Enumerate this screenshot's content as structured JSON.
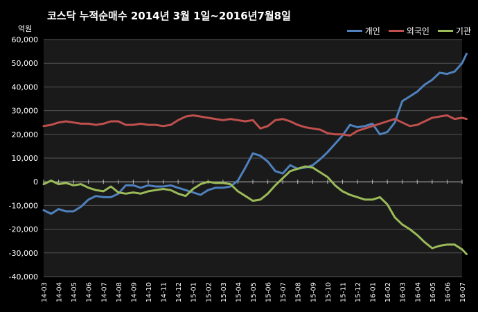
{
  "title": "코스닥  누적순매수 2014년 3월 1일~2016년7월8일",
  "chart_data": {
    "type": "line",
    "ylabel": "억원",
    "ylim": [
      -40000,
      60000
    ],
    "yticks": [
      -40000,
      -30000,
      -20000,
      -10000,
      0,
      10000,
      20000,
      30000,
      40000,
      50000,
      60000
    ],
    "ytick_labels": [
      "-40,000",
      "-30,000",
      "-20,000",
      "-10,000",
      "0",
      "10,000",
      "20,000",
      "30,000",
      "40,000",
      "50,000",
      "60,000"
    ],
    "categories": [
      "14-03",
      "14-04",
      "14-05",
      "14-06",
      "14-07",
      "14-08",
      "14-09",
      "14-10",
      "14-11",
      "14-12",
      "15-01",
      "15-02",
      "15-03",
      "15-04",
      "15-05",
      "15-06",
      "15-07",
      "15-08",
      "15-09",
      "15-10",
      "15-11",
      "15-12",
      "16-01",
      "16-02",
      "16-03",
      "16-04",
      "16-05",
      "16-06",
      "16-07"
    ],
    "grid": true,
    "legend": "top-right",
    "series": [
      {
        "name": "개인",
        "color": "#4f81bd",
        "x": [
          "14-03",
          "14-03.5",
          "14-04",
          "14-04.5",
          "14-05",
          "14-05.5",
          "14-06",
          "14-06.5",
          "14-07",
          "14-07.5",
          "14-08",
          "14-08.5",
          "14-09",
          "14-09.5",
          "14-10",
          "14-10.5",
          "14-11",
          "14-11.5",
          "14-12",
          "14-12.5",
          "15-01",
          "15-01.5",
          "15-02",
          "15-02.5",
          "15-03",
          "15-03.5",
          "15-04",
          "15-04.5",
          "15-05",
          "15-05.5",
          "15-06",
          "15-06.5",
          "15-07",
          "15-07.5",
          "15-08",
          "15-08.5",
          "15-09",
          "15-09.5",
          "15-10",
          "15-10.5",
          "15-11",
          "15-11.5",
          "15-12",
          "15-12.5",
          "16-01",
          "16-01.5",
          "16-02",
          "16-02.5",
          "16-03",
          "16-03.5",
          "16-04",
          "16-04.5",
          "16-05",
          "16-05.5",
          "16-06",
          "16-06.5",
          "16-07",
          "16-07.3"
        ],
        "values": [
          -12000,
          -13500,
          -11500,
          -12500,
          -12500,
          -10500,
          -7500,
          -6000,
          -6500,
          -6500,
          -5000,
          -1500,
          -1500,
          -2500,
          -1500,
          -2000,
          -2000,
          -1500,
          -2500,
          -3500,
          -4500,
          -5500,
          -3500,
          -2500,
          -2500,
          -2000,
          500,
          6000,
          12000,
          11000,
          8500,
          4500,
          3500,
          7000,
          5500,
          6000,
          7000,
          9500,
          12500,
          16000,
          19500,
          24000,
          23000,
          23500,
          24500,
          20000,
          21000,
          25000,
          34000,
          36000,
          38000,
          41000,
          43000,
          46000,
          45500,
          46500,
          50000,
          54000
        ]
      },
      {
        "name": "외국인",
        "color": "#c0504d",
        "x": [
          "14-03",
          "14-03.5",
          "14-04",
          "14-04.5",
          "14-05",
          "14-05.5",
          "14-06",
          "14-06.5",
          "14-07",
          "14-07.5",
          "14-08",
          "14-08.5",
          "14-09",
          "14-09.5",
          "14-10",
          "14-10.5",
          "14-11",
          "14-11.5",
          "14-12",
          "14-12.5",
          "15-01",
          "15-01.5",
          "15-02",
          "15-02.5",
          "15-03",
          "15-03.5",
          "15-04",
          "15-04.5",
          "15-05",
          "15-05.5",
          "15-06",
          "15-06.5",
          "15-07",
          "15-07.5",
          "15-08",
          "15-08.5",
          "15-09",
          "15-09.5",
          "15-10",
          "15-10.5",
          "15-11",
          "15-11.5",
          "15-12",
          "15-12.5",
          "16-01",
          "16-01.5",
          "16-02",
          "16-02.5",
          "16-03",
          "16-03.5",
          "16-04",
          "16-04.5",
          "16-05",
          "16-05.5",
          "16-06",
          "16-06.5",
          "16-07",
          "16-07.3"
        ],
        "values": [
          23500,
          24000,
          25000,
          25500,
          25000,
          24500,
          24500,
          24000,
          24500,
          25500,
          25500,
          24000,
          24000,
          24500,
          24000,
          24000,
          23500,
          24000,
          26000,
          27500,
          28000,
          27500,
          27000,
          26500,
          26000,
          26500,
          26000,
          25500,
          26000,
          22500,
          23500,
          26000,
          26500,
          25500,
          24000,
          23000,
          22500,
          22000,
          20500,
          20000,
          20000,
          19500,
          21500,
          22500,
          23500,
          24500,
          25500,
          26500,
          25000,
          23500,
          24000,
          25500,
          27000,
          27500,
          28000,
          26500,
          27000,
          26500
        ]
      },
      {
        "name": "기관",
        "color": "#9bbb59",
        "x": [
          "14-03",
          "14-03.5",
          "14-04",
          "14-04.5",
          "14-05",
          "14-05.5",
          "14-06",
          "14-06.5",
          "14-07",
          "14-07.5",
          "14-08",
          "14-08.5",
          "14-09",
          "14-09.5",
          "14-10",
          "14-10.5",
          "14-11",
          "14-11.5",
          "14-12",
          "14-12.5",
          "15-01",
          "15-01.5",
          "15-02",
          "15-02.5",
          "15-03",
          "15-03.5",
          "15-04",
          "15-04.5",
          "15-05",
          "15-05.5",
          "15-06",
          "15-06.5",
          "15-07",
          "15-07.5",
          "15-08",
          "15-08.5",
          "15-09",
          "15-09.5",
          "15-10",
          "15-10.5",
          "15-11",
          "15-11.5",
          "15-12",
          "15-12.5",
          "16-01",
          "16-01.5",
          "16-02",
          "16-02.5",
          "16-03",
          "16-03.5",
          "16-04",
          "16-04.5",
          "16-05",
          "16-05.5",
          "16-06",
          "16-06.5",
          "16-07",
          "16-07.3"
        ],
        "values": [
          -1000,
          500,
          -1000,
          -500,
          -1500,
          -1000,
          -2500,
          -3500,
          -4000,
          -2000,
          -4500,
          -5000,
          -4500,
          -5000,
          -4000,
          -3500,
          -3000,
          -3500,
          -5000,
          -6000,
          -3000,
          -1000,
          0,
          -500,
          -500,
          -1000,
          -4000,
          -6000,
          -8000,
          -7500,
          -5000,
          -1500,
          1500,
          4500,
          5500,
          6500,
          6000,
          4000,
          2000,
          -1500,
          -4000,
          -5500,
          -6500,
          -7500,
          -7500,
          -6500,
          -9500,
          -15000,
          -18000,
          -20000,
          -22500,
          -25500,
          -28000,
          -27000,
          -26500,
          -26500,
          -28500,
          -30500
        ]
      }
    ]
  }
}
